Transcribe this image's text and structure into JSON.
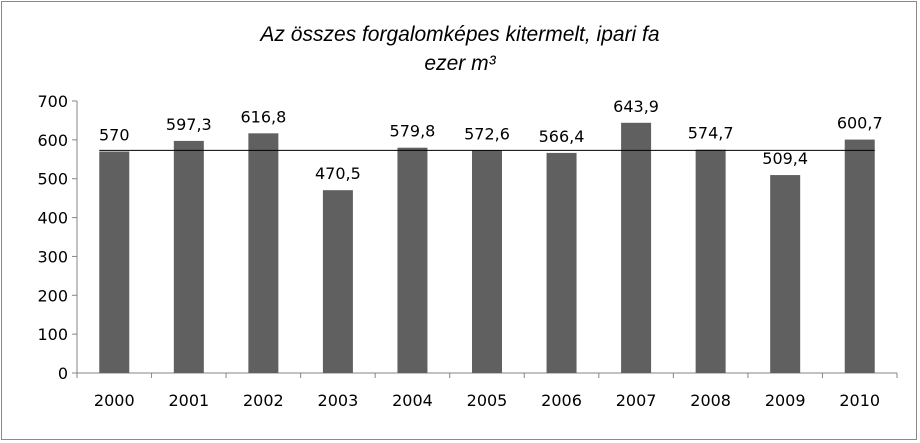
{
  "chart_data": {
    "type": "bar",
    "title": "Az összes forgalomképes kitermelt, ipari fa",
    "subtitle": "ezer m³",
    "categories": [
      "2000",
      "2001",
      "2002",
      "2003",
      "2004",
      "2005",
      "2006",
      "2007",
      "2008",
      "2009",
      "2010"
    ],
    "values": [
      570,
      597.3,
      616.8,
      470.5,
      579.8,
      572.6,
      566.4,
      643.9,
      574.7,
      509.4,
      600.7
    ],
    "data_labels": [
      "570",
      "597,3",
      "616,8",
      "470,5",
      "579,8",
      "572,6",
      "566,4",
      "643,9",
      "574,7",
      "509,4",
      "600,7"
    ],
    "yticks": [
      "0",
      "100",
      "200",
      "300",
      "400",
      "500",
      "600",
      "700"
    ],
    "ylim": [
      0,
      700
    ],
    "reference_line": 573,
    "bar_color": "#606060",
    "line_color": "#000000",
    "grid": false,
    "legend": "none"
  }
}
